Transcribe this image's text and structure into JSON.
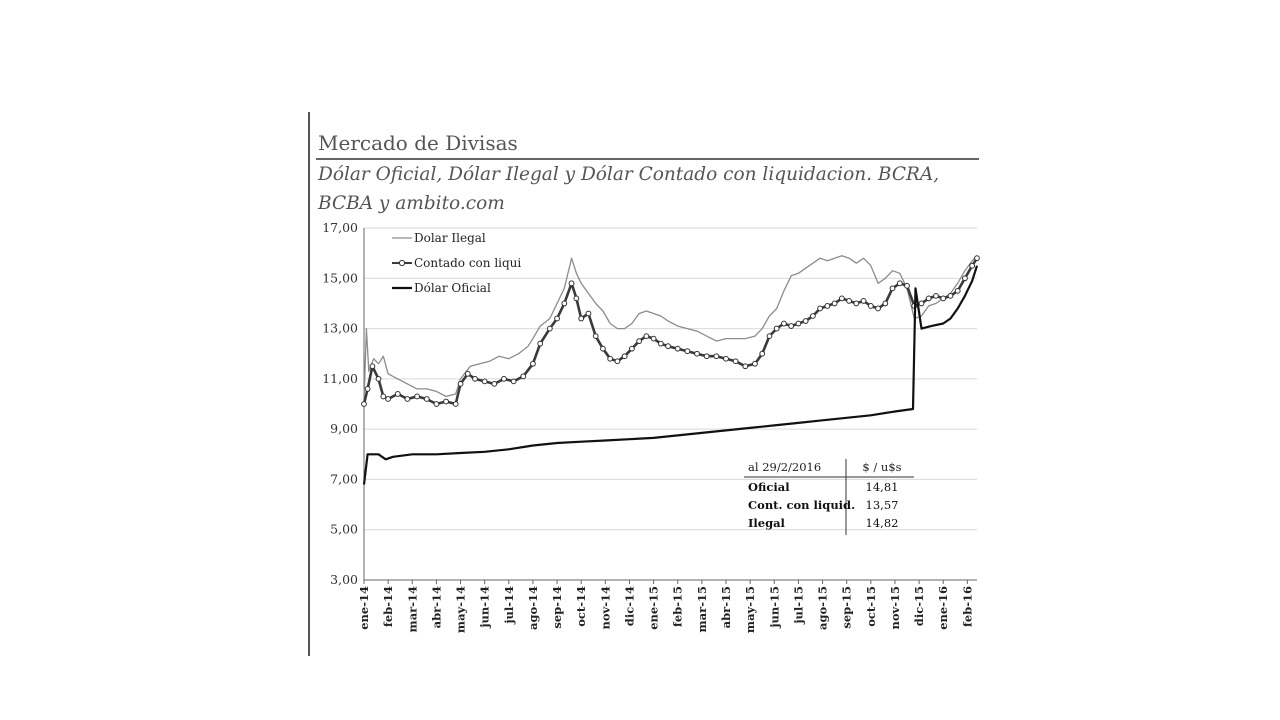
{
  "header": {
    "title": "Mercado de Divisas",
    "subtitle_line1": "Dólar Oficial, Dólar Ilegal y Dólar Contado con liquidacion. BCRA,",
    "subtitle_line2": "BCBA y ambito.com"
  },
  "chart_data": {
    "type": "line",
    "ylim": [
      3,
      17
    ],
    "yticks": [
      "3,00",
      "5,00",
      "7,00",
      "9,00",
      "11,00",
      "13,00",
      "15,00",
      "17,00"
    ],
    "grid": true,
    "legend_position": "top-left",
    "categories": [
      "ene-14",
      "feb-14",
      "mar-14",
      "abr-14",
      "may-14",
      "jun-14",
      "jul-14",
      "ago-14",
      "sep-14",
      "oct-14",
      "nov-14",
      "dic-14",
      "ene-15",
      "feb-15",
      "mar-15",
      "abr-15",
      "may-15",
      "jun-15",
      "jul-15",
      "ago-15",
      "sep-15",
      "oct-15",
      "nov-15",
      "dic-15",
      "ene-16",
      "feb-16"
    ],
    "series": [
      {
        "name": "Dolar Ilegal",
        "color": "#8c8c8c",
        "style": "thin",
        "points": [
          [
            0,
            10.1
          ],
          [
            0.1,
            13.0
          ],
          [
            0.2,
            11.3
          ],
          [
            0.4,
            11.8
          ],
          [
            0.6,
            11.6
          ],
          [
            0.8,
            11.9
          ],
          [
            1.0,
            11.2
          ],
          [
            1.4,
            11.0
          ],
          [
            1.8,
            10.8
          ],
          [
            2.2,
            10.6
          ],
          [
            2.6,
            10.6
          ],
          [
            3.0,
            10.5
          ],
          [
            3.4,
            10.3
          ],
          [
            3.8,
            10.4
          ],
          [
            4.0,
            11.0
          ],
          [
            4.4,
            11.5
          ],
          [
            4.8,
            11.6
          ],
          [
            5.2,
            11.7
          ],
          [
            5.6,
            11.9
          ],
          [
            6.0,
            11.8
          ],
          [
            6.4,
            12.0
          ],
          [
            6.8,
            12.3
          ],
          [
            7.0,
            12.6
          ],
          [
            7.3,
            13.1
          ],
          [
            7.7,
            13.4
          ],
          [
            8.0,
            14.0
          ],
          [
            8.3,
            14.6
          ],
          [
            8.6,
            15.8
          ],
          [
            8.8,
            15.2
          ],
          [
            9.0,
            14.8
          ],
          [
            9.3,
            14.4
          ],
          [
            9.6,
            14.0
          ],
          [
            9.9,
            13.7
          ],
          [
            10.2,
            13.2
          ],
          [
            10.5,
            13.0
          ],
          [
            10.8,
            13.0
          ],
          [
            11.1,
            13.2
          ],
          [
            11.4,
            13.6
          ],
          [
            11.7,
            13.7
          ],
          [
            12.0,
            13.6
          ],
          [
            12.3,
            13.5
          ],
          [
            12.6,
            13.3
          ],
          [
            13.0,
            13.1
          ],
          [
            13.4,
            13.0
          ],
          [
            13.8,
            12.9
          ],
          [
            14.2,
            12.7
          ],
          [
            14.6,
            12.5
          ],
          [
            15.0,
            12.6
          ],
          [
            15.4,
            12.6
          ],
          [
            15.8,
            12.6
          ],
          [
            16.2,
            12.7
          ],
          [
            16.5,
            13.0
          ],
          [
            16.8,
            13.5
          ],
          [
            17.1,
            13.8
          ],
          [
            17.4,
            14.5
          ],
          [
            17.7,
            15.1
          ],
          [
            18.0,
            15.2
          ],
          [
            18.3,
            15.4
          ],
          [
            18.6,
            15.6
          ],
          [
            18.9,
            15.8
          ],
          [
            19.2,
            15.7
          ],
          [
            19.5,
            15.8
          ],
          [
            19.8,
            15.9
          ],
          [
            20.1,
            15.8
          ],
          [
            20.4,
            15.6
          ],
          [
            20.7,
            15.8
          ],
          [
            21.0,
            15.5
          ],
          [
            21.3,
            14.8
          ],
          [
            21.6,
            15.0
          ],
          [
            21.9,
            15.3
          ],
          [
            22.2,
            15.2
          ],
          [
            22.5,
            14.6
          ],
          [
            22.8,
            13.4
          ],
          [
            23.1,
            13.5
          ],
          [
            23.4,
            13.9
          ],
          [
            23.7,
            14.0
          ],
          [
            24.0,
            14.2
          ],
          [
            24.3,
            14.4
          ],
          [
            24.6,
            14.8
          ],
          [
            24.9,
            15.3
          ],
          [
            25.2,
            15.7
          ],
          [
            25.4,
            15.9
          ]
        ]
      },
      {
        "name": "Contado con liqui",
        "color": "#3a3a3a",
        "style": "marker",
        "points": [
          [
            0,
            10.0
          ],
          [
            0.15,
            10.6
          ],
          [
            0.35,
            11.5
          ],
          [
            0.6,
            11.0
          ],
          [
            0.8,
            10.3
          ],
          [
            1.0,
            10.2
          ],
          [
            1.4,
            10.4
          ],
          [
            1.8,
            10.2
          ],
          [
            2.2,
            10.3
          ],
          [
            2.6,
            10.2
          ],
          [
            3.0,
            10.0
          ],
          [
            3.4,
            10.1
          ],
          [
            3.8,
            10.0
          ],
          [
            4.0,
            10.8
          ],
          [
            4.3,
            11.2
          ],
          [
            4.6,
            11.0
          ],
          [
            5.0,
            10.9
          ],
          [
            5.4,
            10.8
          ],
          [
            5.8,
            11.0
          ],
          [
            6.2,
            10.9
          ],
          [
            6.6,
            11.1
          ],
          [
            7.0,
            11.6
          ],
          [
            7.3,
            12.4
          ],
          [
            7.7,
            13.0
          ],
          [
            8.0,
            13.4
          ],
          [
            8.3,
            14.0
          ],
          [
            8.6,
            14.8
          ],
          [
            8.8,
            14.2
          ],
          [
            9.0,
            13.4
          ],
          [
            9.3,
            13.6
          ],
          [
            9.6,
            12.7
          ],
          [
            9.9,
            12.2
          ],
          [
            10.2,
            11.8
          ],
          [
            10.5,
            11.7
          ],
          [
            10.8,
            11.9
          ],
          [
            11.1,
            12.2
          ],
          [
            11.4,
            12.5
          ],
          [
            11.7,
            12.7
          ],
          [
            12.0,
            12.6
          ],
          [
            12.3,
            12.4
          ],
          [
            12.6,
            12.3
          ],
          [
            13.0,
            12.2
          ],
          [
            13.4,
            12.1
          ],
          [
            13.8,
            12.0
          ],
          [
            14.2,
            11.9
          ],
          [
            14.6,
            11.9
          ],
          [
            15.0,
            11.8
          ],
          [
            15.4,
            11.7
          ],
          [
            15.8,
            11.5
          ],
          [
            16.2,
            11.6
          ],
          [
            16.5,
            12.0
          ],
          [
            16.8,
            12.7
          ],
          [
            17.1,
            13.0
          ],
          [
            17.4,
            13.2
          ],
          [
            17.7,
            13.1
          ],
          [
            18.0,
            13.2
          ],
          [
            18.3,
            13.3
          ],
          [
            18.6,
            13.5
          ],
          [
            18.9,
            13.8
          ],
          [
            19.2,
            13.9
          ],
          [
            19.5,
            14.0
          ],
          [
            19.8,
            14.2
          ],
          [
            20.1,
            14.1
          ],
          [
            20.4,
            14.0
          ],
          [
            20.7,
            14.1
          ],
          [
            21.0,
            13.9
          ],
          [
            21.3,
            13.8
          ],
          [
            21.6,
            14.0
          ],
          [
            21.9,
            14.6
          ],
          [
            22.2,
            14.8
          ],
          [
            22.5,
            14.7
          ],
          [
            22.8,
            13.9
          ],
          [
            23.1,
            14.0
          ],
          [
            23.4,
            14.2
          ],
          [
            23.7,
            14.3
          ],
          [
            24.0,
            14.2
          ],
          [
            24.3,
            14.3
          ],
          [
            24.6,
            14.5
          ],
          [
            24.9,
            15.0
          ],
          [
            25.2,
            15.5
          ],
          [
            25.4,
            15.8
          ]
        ]
      },
      {
        "name": "Dólar Oficial",
        "color": "#111111",
        "style": "thick",
        "points": [
          [
            0,
            6.8
          ],
          [
            0.15,
            8.0
          ],
          [
            0.6,
            8.0
          ],
          [
            0.9,
            7.8
          ],
          [
            1.2,
            7.9
          ],
          [
            2.0,
            8.0
          ],
          [
            3.0,
            8.0
          ],
          [
            4.0,
            8.05
          ],
          [
            5.0,
            8.1
          ],
          [
            6.0,
            8.2
          ],
          [
            7.0,
            8.35
          ],
          [
            8.0,
            8.45
          ],
          [
            9.0,
            8.5
          ],
          [
            10.0,
            8.55
          ],
          [
            11.0,
            8.6
          ],
          [
            12.0,
            8.65
          ],
          [
            13.0,
            8.75
          ],
          [
            14.0,
            8.85
          ],
          [
            15.0,
            8.95
          ],
          [
            16.0,
            9.05
          ],
          [
            17.0,
            9.15
          ],
          [
            18.0,
            9.25
          ],
          [
            19.0,
            9.35
          ],
          [
            20.0,
            9.45
          ],
          [
            21.0,
            9.55
          ],
          [
            22.0,
            9.7
          ],
          [
            22.75,
            9.8
          ],
          [
            22.85,
            14.6
          ],
          [
            23.1,
            13.0
          ],
          [
            23.5,
            13.1
          ],
          [
            24.0,
            13.2
          ],
          [
            24.3,
            13.4
          ],
          [
            24.6,
            13.8
          ],
          [
            24.9,
            14.3
          ],
          [
            25.2,
            14.9
          ],
          [
            25.4,
            15.5
          ]
        ]
      }
    ],
    "table": {
      "header": [
        "al 29/2/2016",
        "$ / u$s"
      ],
      "rows": [
        {
          "label": "Oficial",
          "value": "14,81"
        },
        {
          "label": "Cont. con liquid.",
          "value": "13,57"
        },
        {
          "label": "Ilegal",
          "value": "14,82"
        }
      ]
    }
  }
}
